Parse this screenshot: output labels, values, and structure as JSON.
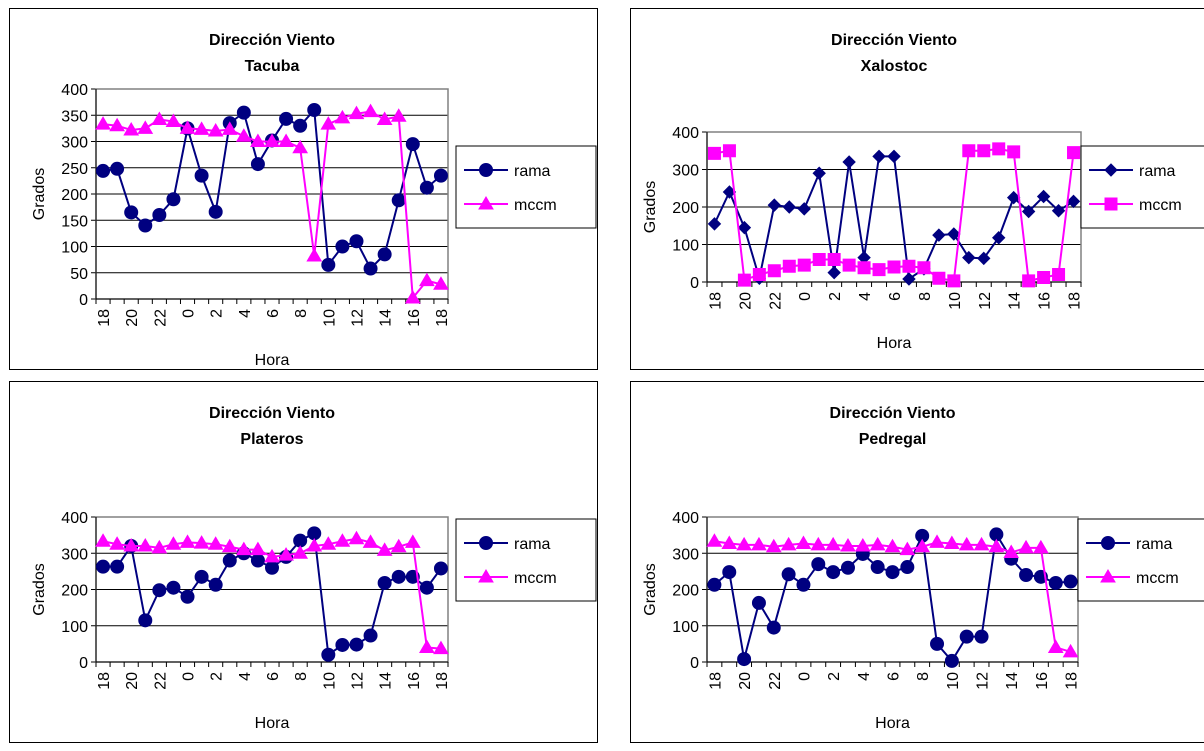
{
  "colors": {
    "rama": "#000080",
    "mccm": "#ff00ff",
    "grid": "#000000",
    "plot_border": "#808080"
  },
  "chart_data": [
    {
      "type": "line",
      "title": "Dirección Viento",
      "subtitle": "Tacuba",
      "xlabel": "Hora",
      "ylabel": "Grados",
      "ylim": [
        0,
        400
      ],
      "yticks": [
        0,
        50,
        100,
        150,
        200,
        250,
        300,
        350,
        400
      ],
      "x": [
        18,
        19,
        20,
        21,
        22,
        23,
        0,
        1,
        2,
        3,
        4,
        5,
        6,
        7,
        8,
        9,
        10,
        11,
        12,
        13,
        14,
        15,
        16,
        17,
        18
      ],
      "xticks_shown": [
        "18",
        "20",
        "22",
        "0",
        "2",
        "4",
        "6",
        "8",
        "10",
        "12",
        "14",
        "16",
        "18"
      ],
      "grid": true,
      "legend_position": "right",
      "series": [
        {
          "name": "rama",
          "marker": "circle",
          "values": [
            244,
            248,
            165,
            140,
            160,
            190,
            325,
            235,
            166,
            335,
            355,
            257,
            302,
            343,
            330,
            360,
            65,
            100,
            110,
            58,
            85,
            188,
            295,
            212,
            235
          ]
        },
        {
          "name": "mccm",
          "marker": "triangle",
          "values": [
            333,
            330,
            322,
            325,
            342,
            338,
            325,
            323,
            320,
            323,
            310,
            300,
            300,
            300,
            288,
            82,
            333,
            345,
            353,
            357,
            342,
            348,
            2,
            35,
            28
          ]
        }
      ]
    },
    {
      "type": "line",
      "title": "Dirección Viento",
      "subtitle": "Xalostoc",
      "xlabel": "Hora",
      "ylabel": "Grados",
      "ylim": [
        0,
        400
      ],
      "yticks": [
        0,
        100,
        200,
        300,
        400
      ],
      "x": [
        18,
        19,
        20,
        21,
        22,
        23,
        0,
        1,
        2,
        3,
        4,
        5,
        6,
        7,
        8,
        9,
        10,
        11,
        12,
        13,
        14,
        15,
        16,
        17,
        18
      ],
      "xticks_shown": [
        "18",
        "20",
        "22",
        "0",
        "2",
        "4",
        "6",
        "8",
        "10",
        "12",
        "14",
        "16",
        "18"
      ],
      "grid": true,
      "legend_position": "right",
      "series": [
        {
          "name": "rama",
          "marker": "diamond",
          "values": [
            155,
            240,
            145,
            10,
            205,
            200,
            195,
            290,
            25,
            320,
            65,
            335,
            335,
            8,
            35,
            125,
            128,
            65,
            63,
            118,
            225,
            188,
            228,
            190,
            215
          ]
        },
        {
          "name": "mccm",
          "marker": "square",
          "values": [
            343,
            350,
            5,
            20,
            30,
            42,
            45,
            60,
            60,
            45,
            38,
            33,
            40,
            42,
            38,
            10,
            3,
            350,
            350,
            355,
            347,
            3,
            12,
            20,
            345
          ]
        }
      ]
    },
    {
      "type": "line",
      "title": "Dirección Viento",
      "subtitle": "Plateros",
      "xlabel": "Hora",
      "ylabel": "Grados",
      "ylim": [
        0,
        400
      ],
      "yticks": [
        0,
        100,
        200,
        300,
        400
      ],
      "x": [
        18,
        19,
        20,
        21,
        22,
        23,
        0,
        1,
        2,
        3,
        4,
        5,
        6,
        7,
        8,
        9,
        10,
        11,
        12,
        13,
        14,
        15,
        16,
        17,
        18
      ],
      "xticks_shown": [
        "18",
        "20",
        "22",
        "0",
        "2",
        "4",
        "6",
        "8",
        "10",
        "12",
        "14",
        "16",
        "18"
      ],
      "grid": true,
      "legend_position": "right",
      "series": [
        {
          "name": "rama",
          "marker": "circle",
          "values": [
            263,
            263,
            320,
            115,
            198,
            205,
            180,
            235,
            213,
            280,
            300,
            280,
            260,
            290,
            335,
            355,
            20,
            47,
            48,
            73,
            218,
            235,
            235,
            205,
            258
          ]
        },
        {
          "name": "mccm",
          "marker": "triangle",
          "values": [
            333,
            325,
            320,
            320,
            315,
            325,
            330,
            328,
            325,
            318,
            310,
            310,
            290,
            295,
            300,
            320,
            325,
            333,
            340,
            330,
            308,
            318,
            330,
            40,
            37
          ]
        }
      ]
    },
    {
      "type": "line",
      "title": "Dirección Viento",
      "subtitle": "Pedregal",
      "xlabel": "Hora",
      "ylabel": "Grados",
      "ylim": [
        0,
        400
      ],
      "yticks": [
        0,
        100,
        200,
        300,
        400
      ],
      "x": [
        18,
        19,
        20,
        21,
        22,
        23,
        0,
        1,
        2,
        3,
        4,
        5,
        6,
        7,
        8,
        9,
        10,
        11,
        12,
        13,
        14,
        15,
        16,
        17,
        18
      ],
      "xticks_shown": [
        "18",
        "20",
        "22",
        "0",
        "2",
        "4",
        "6",
        "8",
        "10",
        "12",
        "14",
        "16",
        "18"
      ],
      "grid": true,
      "legend_position": "right",
      "series": [
        {
          "name": "rama",
          "marker": "circle",
          "values": [
            213,
            248,
            8,
            163,
            95,
            242,
            213,
            270,
            248,
            260,
            298,
            262,
            248,
            262,
            348,
            50,
            3,
            70,
            70,
            352,
            285,
            240,
            235,
            218,
            222
          ]
        },
        {
          "name": "mccm",
          "marker": "triangle",
          "values": [
            333,
            327,
            323,
            323,
            318,
            323,
            327,
            323,
            323,
            320,
            320,
            323,
            318,
            310,
            318,
            330,
            327,
            323,
            323,
            318,
            302,
            315,
            315,
            40,
            28
          ]
        }
      ]
    }
  ]
}
